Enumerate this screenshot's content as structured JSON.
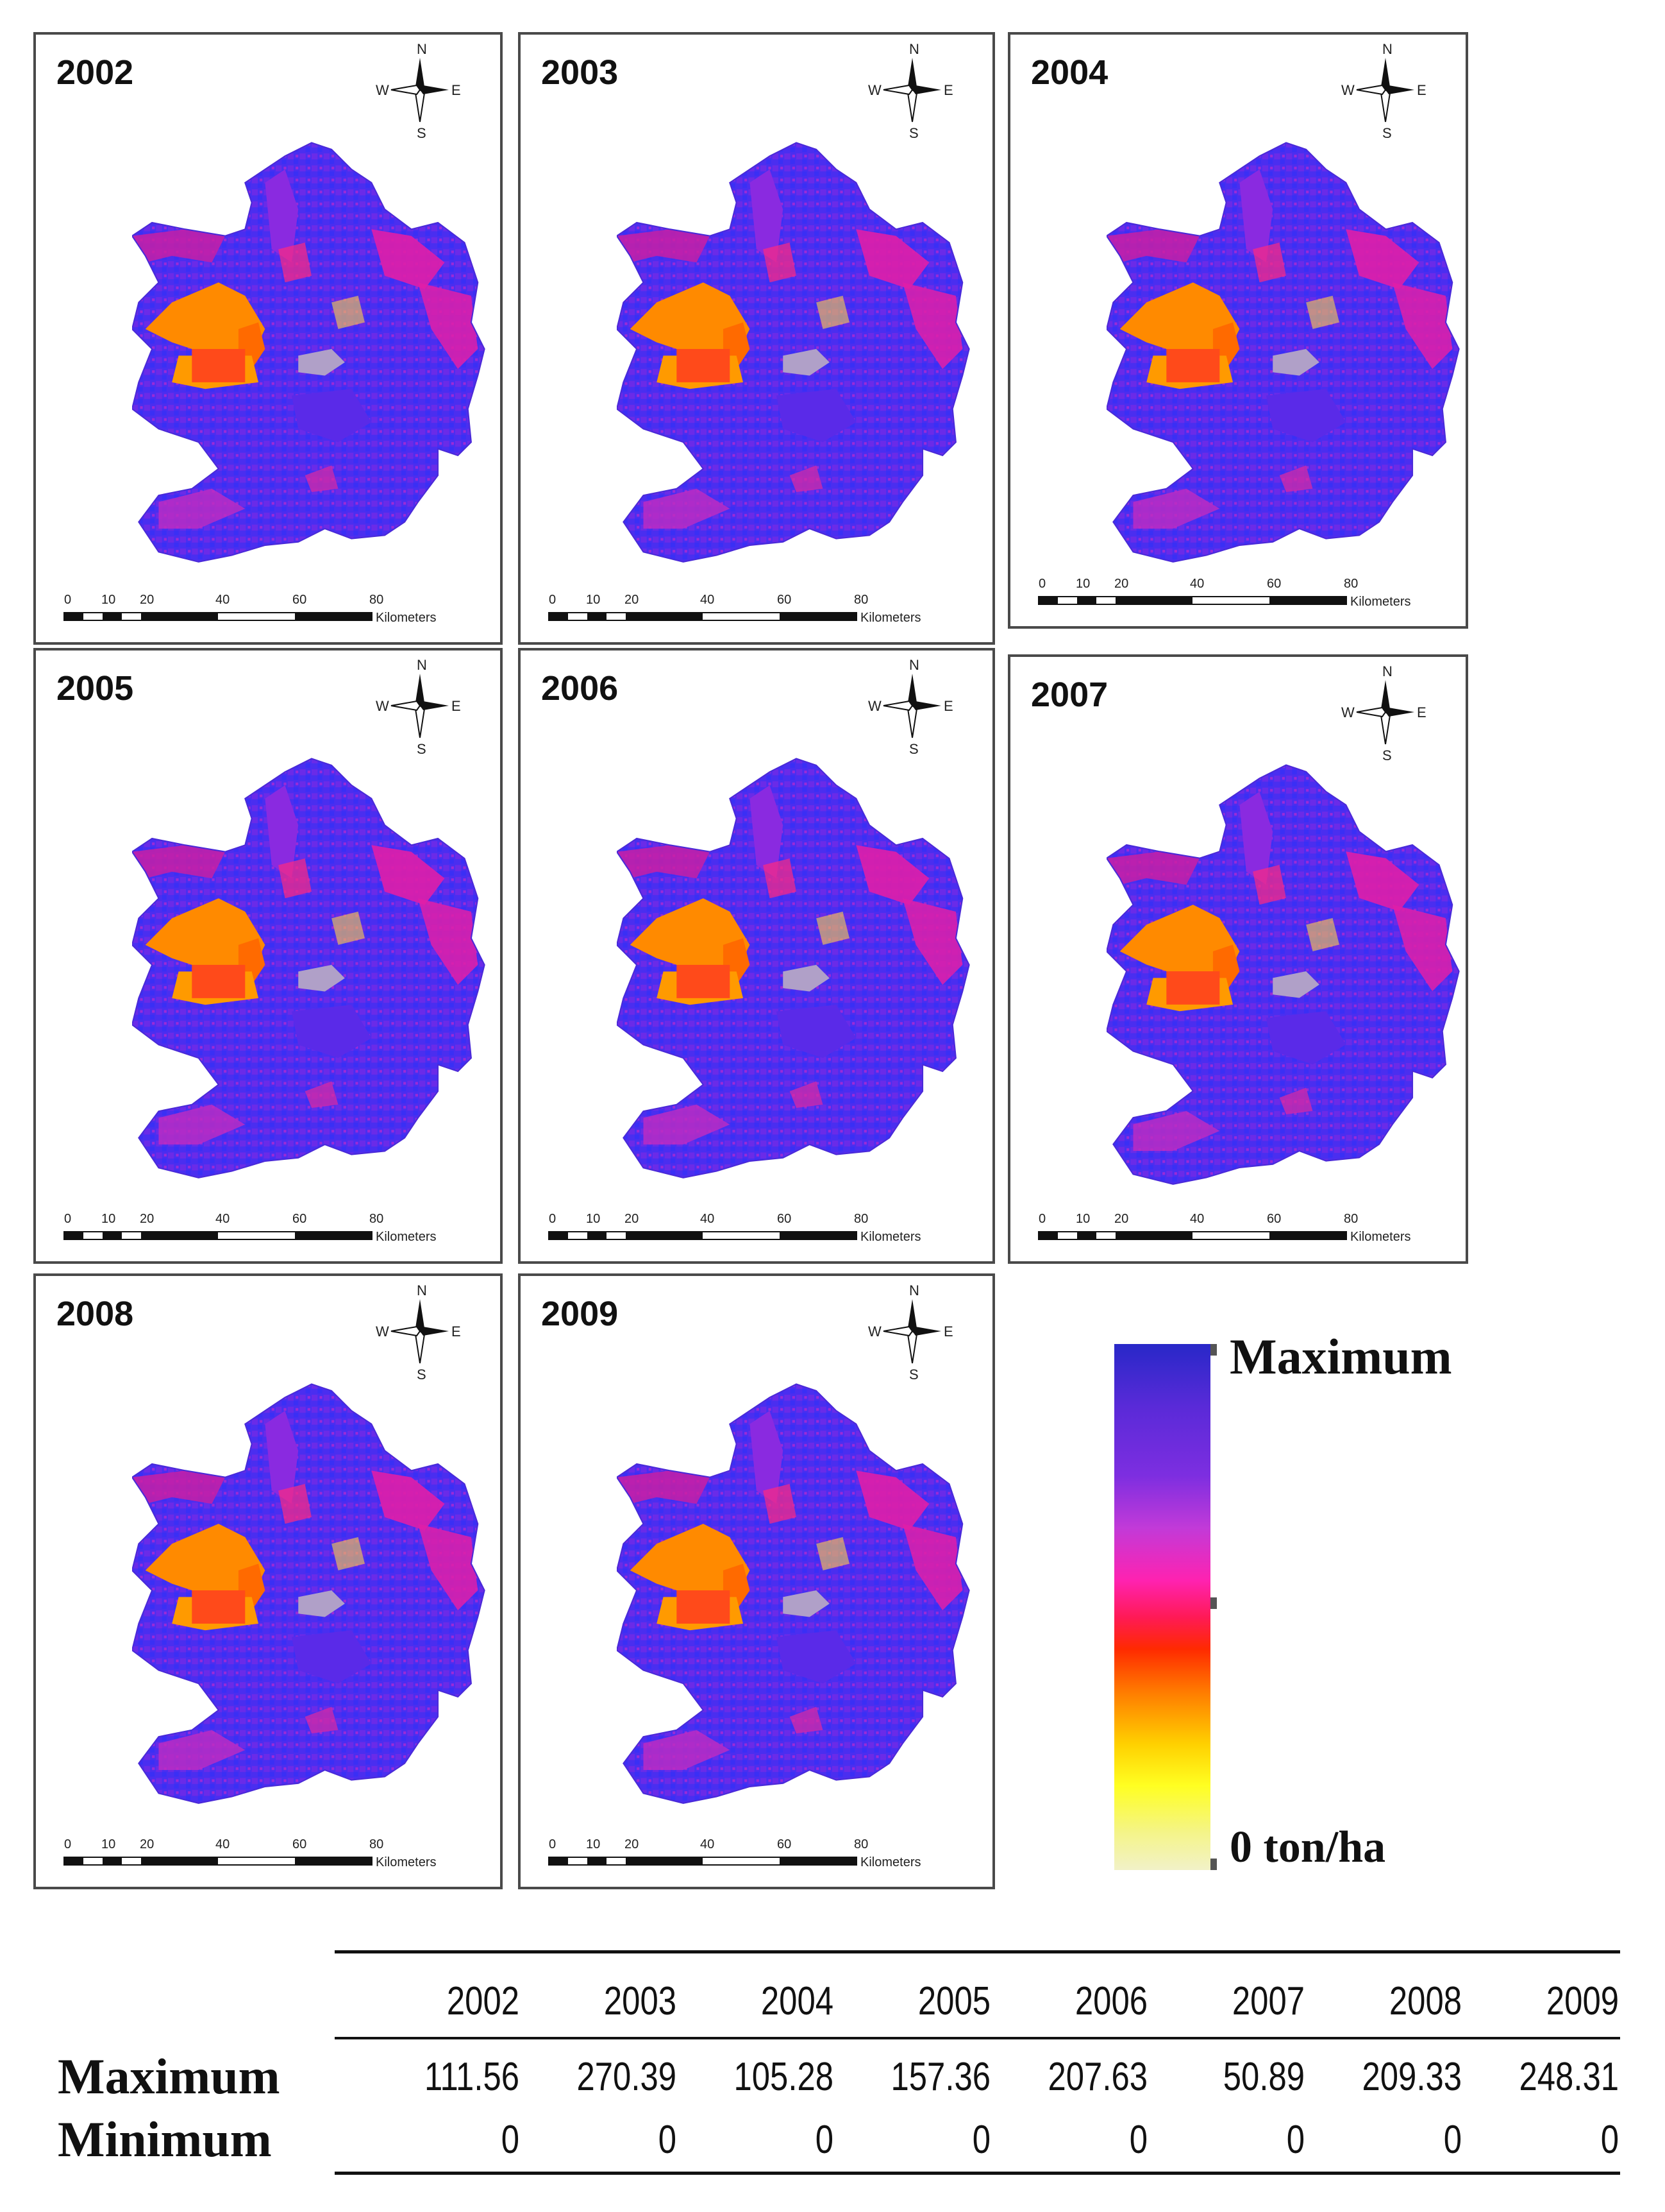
{
  "panels": [
    {
      "year": "2002"
    },
    {
      "year": "2003"
    },
    {
      "year": "2004"
    },
    {
      "year": "2005"
    },
    {
      "year": "2006"
    },
    {
      "year": "2007"
    },
    {
      "year": "2008"
    },
    {
      "year": "2009"
    }
  ],
  "compass": {
    "n": "N",
    "s": "S",
    "e": "E",
    "w": "W"
  },
  "scale": {
    "ticks": [
      "0",
      "10",
      "20",
      "40",
      "60",
      "80"
    ],
    "unit": "Kilometers"
  },
  "legend": {
    "max_label": "Maximum",
    "min_label": "0 ton/ha"
  },
  "table": {
    "years": [
      "2002",
      "2003",
      "2004",
      "2005",
      "2006",
      "2007",
      "2008",
      "2009"
    ],
    "max_label": "Maximum",
    "min_label": "Minimum",
    "maximum": [
      "111.56",
      "270.39",
      "105.28",
      "157.36",
      "207.63",
      "50.89",
      "209.33",
      "248.31"
    ],
    "minimum": [
      "0",
      "0",
      "0",
      "0",
      "0",
      "0",
      "0",
      "0"
    ]
  }
}
